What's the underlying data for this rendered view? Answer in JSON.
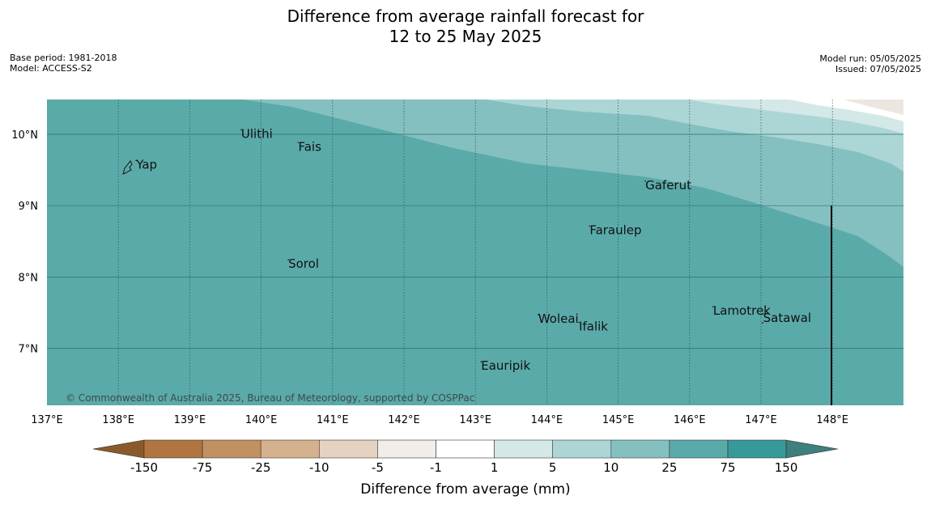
{
  "header": {
    "title_line1": "Difference from average rainfall forecast for",
    "title_line2": "12 to 25 May 2025",
    "base_period": "Base period: 1981-2018",
    "model": "Model: ACCESS-S2",
    "model_run": "Model run: 05/05/2025",
    "issued": "Issued: 07/05/2025"
  },
  "map": {
    "lon_labels": [
      "137°E",
      "138°E",
      "139°E",
      "140°E",
      "141°E",
      "142°E",
      "143°E",
      "144°E",
      "145°E",
      "146°E",
      "147°E",
      "148°E"
    ],
    "lat_labels": [
      "10°N",
      "9°N",
      "8°N",
      "7°N"
    ],
    "places": [
      {
        "name": "Yap",
        "lon": 138.25,
        "lat": 9.52
      },
      {
        "name": "Ulithi",
        "lon": 139.72,
        "lat": 9.95
      },
      {
        "name": "Fais",
        "lon": 140.52,
        "lat": 9.77
      },
      {
        "name": "Gaferut",
        "lon": 145.38,
        "lat": 9.23
      },
      {
        "name": "Faraulep",
        "lon": 144.6,
        "lat": 8.6
      },
      {
        "name": "Sorol",
        "lon": 140.38,
        "lat": 8.13
      },
      {
        "name": "Lamotrek",
        "lon": 146.33,
        "lat": 7.47
      },
      {
        "name": "Woleai",
        "lon": 143.88,
        "lat": 7.36
      },
      {
        "name": "Ifalik",
        "lon": 144.45,
        "lat": 7.25
      },
      {
        "name": "Satawal",
        "lon": 147.03,
        "lat": 7.37
      },
      {
        "name": "Eauripik",
        "lon": 143.08,
        "lat": 6.7
      }
    ],
    "copyright": "© Commonwealth of Australia 2025, Bureau of Meteorology, supported by COSPPac"
  },
  "colorbar": {
    "title": "Difference from average (mm)",
    "ticks": [
      "-150",
      "-75",
      "-25",
      "-10",
      "-5",
      "-1",
      "1",
      "5",
      "10",
      "25",
      "75",
      "150"
    ],
    "colors": {
      "below_min": "#8b5a2b",
      "bins": [
        "#b07540",
        "#c19162",
        "#d6b18e",
        "#e6d2c1",
        "#f1ede9",
        "#ffffff",
        "#d4e8e8",
        "#acd6d6",
        "#84c0bf",
        "#5baaaa",
        "#369a9a"
      ],
      "above_max": "#3f7f7d"
    }
  }
}
